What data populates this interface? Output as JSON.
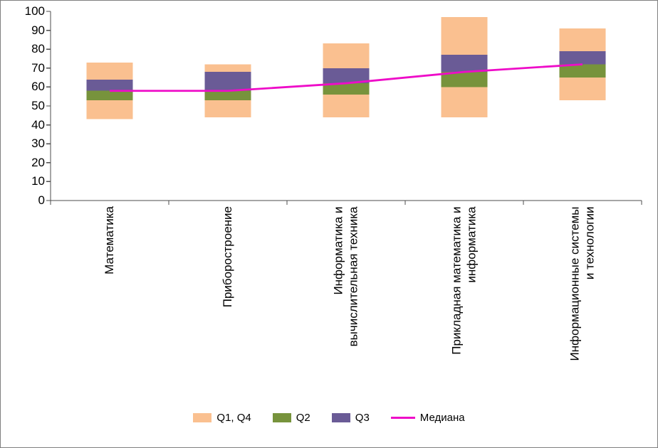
{
  "chart_data": {
    "type": "boxplot",
    "title": "",
    "xlabel": "",
    "ylabel": "",
    "categories": [
      "Математика",
      "Приборостроение",
      "Информатика и\nвычислительная техника",
      "Прикладная математика и\nинформатика",
      "Информационные системы\nи технологии"
    ],
    "ylim": [
      0,
      100
    ],
    "ytick_step": 10,
    "ytick_labels": [
      "0",
      "10",
      "20",
      "30",
      "40",
      "50",
      "60",
      "70",
      "80",
      "90",
      "100"
    ],
    "grid": false,
    "legend_position": "bottom",
    "boxes": [
      {
        "category": "Математика",
        "min": 43,
        "q1": 53,
        "median": 58,
        "q3": 64,
        "max": 73
      },
      {
        "category": "Приборостроение",
        "min": 44,
        "q1": 53,
        "median": 58,
        "q3": 68,
        "max": 72
      },
      {
        "category": "Информатика и вычислительная техника",
        "min": 44,
        "q1": 56,
        "median": 62,
        "q3": 70,
        "max": 83
      },
      {
        "category": "Прикладная математика и информатика",
        "min": 44,
        "q1": 60,
        "median": 68,
        "q3": 77,
        "max": 97
      },
      {
        "category": "Информационные системы и технологии",
        "min": 53,
        "q1": 65,
        "median": 72,
        "q3": 79,
        "max": 91
      }
    ],
    "legend": [
      {
        "label": "Q1, Q4",
        "type": "box",
        "color": "#FAC090"
      },
      {
        "label": "Q2",
        "type": "box",
        "color": "#77933C"
      },
      {
        "label": "Q3",
        "type": "box",
        "color": "#6A5B96"
      },
      {
        "label": "Медиана",
        "type": "line",
        "color": "#EE0CC8"
      }
    ],
    "colors": {
      "q1_q4_fill": "#FAC090",
      "q2_fill": "#77933C",
      "q3_fill": "#6A5B96",
      "median_line": "#EE0CC8",
      "axis": "#4d4d4d",
      "text": "#000000",
      "background": "#ffffff",
      "frame_border": "#7f7f7f"
    }
  }
}
